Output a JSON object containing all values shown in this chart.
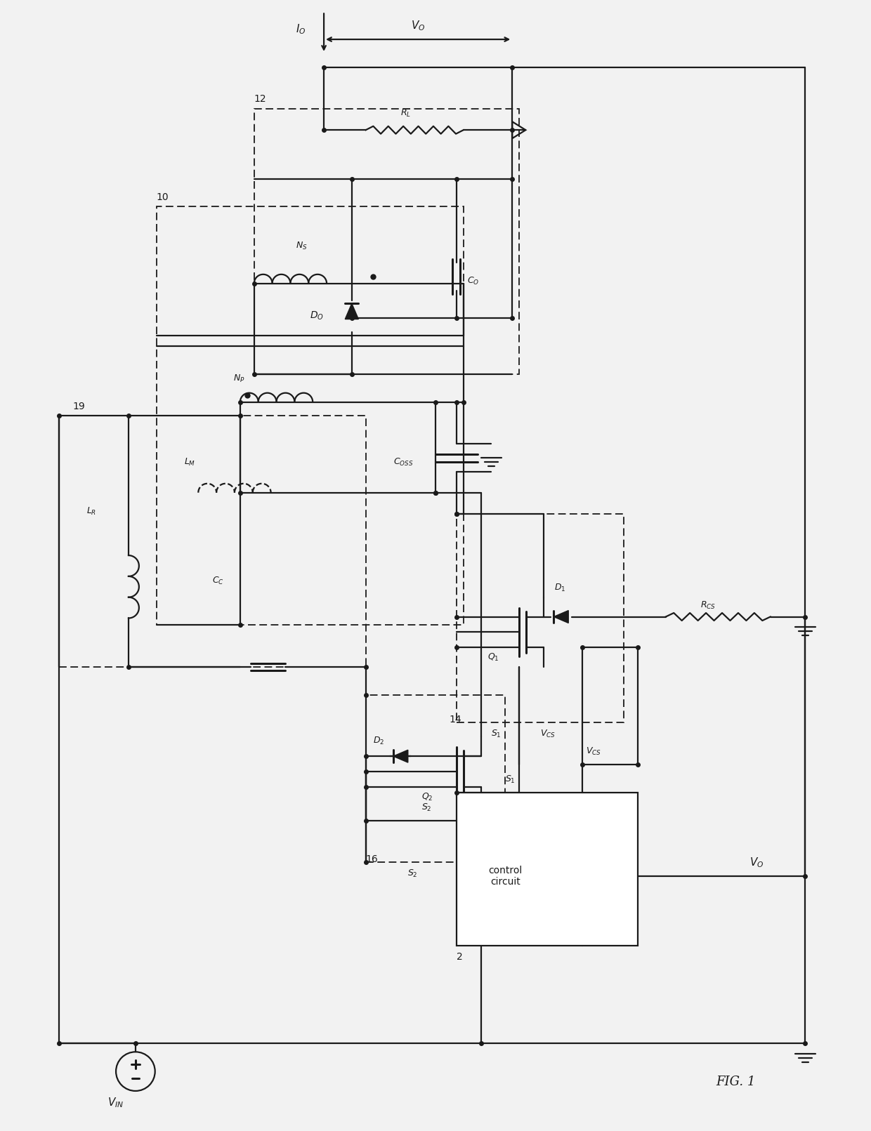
{
  "bg_color": "#f2f2f2",
  "line_color": "#1a1a1a",
  "lw": 1.6,
  "lw_thick": 2.2,
  "fig_label": "FIG. 1"
}
